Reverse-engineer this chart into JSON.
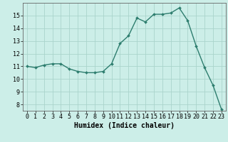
{
  "x": [
    0,
    1,
    2,
    3,
    4,
    5,
    6,
    7,
    8,
    9,
    10,
    11,
    12,
    13,
    14,
    15,
    16,
    17,
    18,
    19,
    20,
    21,
    22,
    23
  ],
  "y": [
    11.0,
    10.9,
    11.1,
    11.2,
    11.2,
    10.8,
    10.6,
    10.5,
    10.5,
    10.6,
    11.2,
    12.8,
    13.4,
    14.8,
    14.5,
    15.1,
    15.1,
    15.2,
    15.6,
    14.6,
    12.6,
    10.9,
    9.5,
    7.6
  ],
  "line_color": "#2d7d6e",
  "marker": "D",
  "marker_size": 2,
  "bg_color": "#cceee8",
  "grid_color": "#aad4cc",
  "xlabel": "Humidex (Indice chaleur)",
  "xlim": [
    -0.5,
    23.5
  ],
  "ylim": [
    7.5,
    16.0
  ],
  "yticks": [
    8,
    9,
    10,
    11,
    12,
    13,
    14,
    15
  ],
  "xticks": [
    0,
    1,
    2,
    3,
    4,
    5,
    6,
    7,
    8,
    9,
    10,
    11,
    12,
    13,
    14,
    15,
    16,
    17,
    18,
    19,
    20,
    21,
    22,
    23
  ],
  "tick_label_size": 6,
  "xlabel_size": 7,
  "line_width": 1.0
}
